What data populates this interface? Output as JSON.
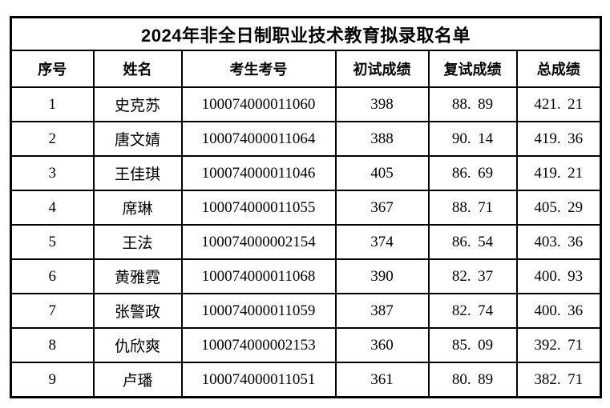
{
  "page": {
    "background": "#ffffff",
    "border_color": "#000000",
    "text_color": "#000000"
  },
  "title": "2024年非全日制职业技术教育拟录取名单",
  "table": {
    "headers": [
      "序号",
      "姓名",
      "考生考号",
      "初试成绩",
      "复试成绩",
      "总成绩"
    ],
    "rows": [
      [
        "1",
        "史克苏",
        "100074000011060",
        "398",
        "88.89",
        "421.21"
      ],
      [
        "2",
        "唐文婧",
        "100074000011064",
        "388",
        "90.14",
        "419.36"
      ],
      [
        "3",
        "王佳琪",
        "100074000011046",
        "405",
        "86.69",
        "419.21"
      ],
      [
        "4",
        "席琳",
        "100074000011055",
        "367",
        "88.71",
        "405.29"
      ],
      [
        "5",
        "王法",
        "100074000002154",
        "374",
        "86.54",
        "403.36"
      ],
      [
        "6",
        "黄雅霓",
        "100074000011068",
        "390",
        "82.37",
        "400.93"
      ],
      [
        "7",
        "张警政",
        "100074000011059",
        "387",
        "82.74",
        "400.36"
      ],
      [
        "8",
        "仇欣爽",
        "100074000002153",
        "360",
        "85.09",
        "392.71"
      ],
      [
        "9",
        "卢璠",
        "100074000011051",
        "361",
        "80.89",
        "382.71"
      ]
    ]
  }
}
